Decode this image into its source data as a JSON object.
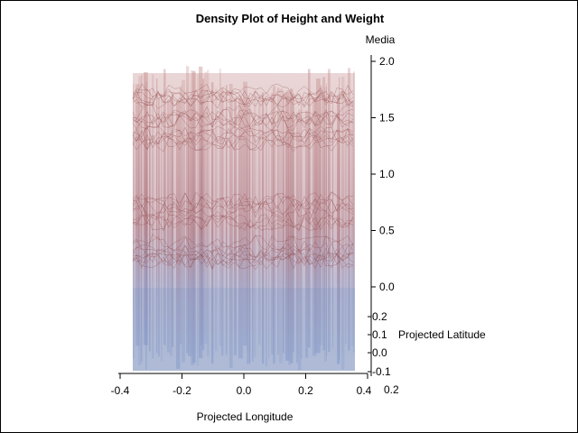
{
  "chart_data": {
    "type": "surface",
    "title": "Density Plot of Height and Weight",
    "x_axis": {
      "label": "Projected Longitude",
      "ticks": [
        "-0.4",
        "-0.2",
        "0.0",
        "0.2",
        "0.4"
      ],
      "range": [
        -0.4,
        0.4
      ]
    },
    "y_axis": {
      "label": "Projected Latitude",
      "ticks": [
        "0.2",
        "0.1",
        "0.0",
        "-0.1",
        "0.2"
      ]
    },
    "z_axis": {
      "label": "Media",
      "ticks": [
        "2.0",
        "1.5",
        "1.0",
        "0.5",
        "0.0"
      ],
      "range": [
        0.0,
        2.0
      ]
    },
    "colors": {
      "high": "#a05050",
      "low": "#6f86bd",
      "base": "#a6b4d2"
    },
    "grid": false
  }
}
